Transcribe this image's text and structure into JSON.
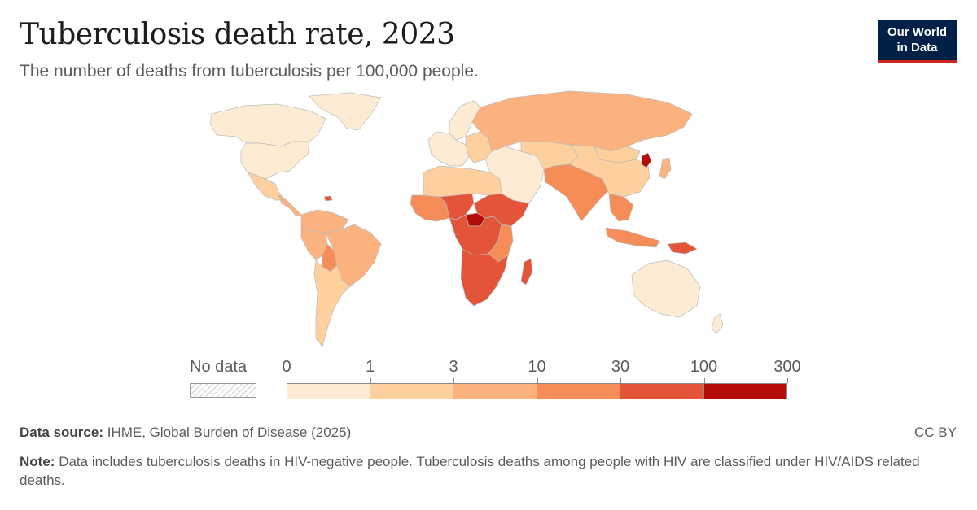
{
  "header": {
    "title": "Tuberculosis death rate, 2023",
    "subtitle": "The number of deaths from tuberculosis per 100,000 people."
  },
  "logo": {
    "line1": "Our World",
    "line2": "in Data"
  },
  "legend": {
    "no_data_label": "No data",
    "ticks": [
      "0",
      "1",
      "3",
      "10",
      "30",
      "100",
      "300"
    ],
    "bins": [
      {
        "from": 0,
        "to": 1,
        "color": "#fdebd4"
      },
      {
        "from": 1,
        "to": 3,
        "color": "#fdd09e"
      },
      {
        "from": 3,
        "to": 10,
        "color": "#fbb27f"
      },
      {
        "from": 10,
        "to": 30,
        "color": "#f68c58"
      },
      {
        "from": 30,
        "to": 100,
        "color": "#e35438"
      },
      {
        "from": 100,
        "to": 300,
        "color": "#b40d0c"
      }
    ]
  },
  "footer": {
    "source_label": "Data source:",
    "source_text": "IHME, Global Burden of Disease (2025)",
    "note_label": "Note:",
    "note_text": "Data includes tuberculosis deaths in HIV-negative people. Tuberculosis deaths among people with HIV are classified under HIV/AIDS related deaths.",
    "license": "CC BY"
  },
  "colors": {
    "border": "#bbbbbb",
    "nodata": "#eeeeee"
  },
  "map_regions": [
    {
      "name": "greenland",
      "bin": 0
    },
    {
      "name": "canada",
      "bin": 0
    },
    {
      "name": "usa",
      "bin": 0
    },
    {
      "name": "mexico",
      "bin": 1
    },
    {
      "name": "central-america",
      "bin": 2
    },
    {
      "name": "haiti",
      "bin": 4
    },
    {
      "name": "south-america-north",
      "bin": 2
    },
    {
      "name": "brazil",
      "bin": 2
    },
    {
      "name": "peru",
      "bin": 2
    },
    {
      "name": "bolivia",
      "bin": 3
    },
    {
      "name": "southern-cone",
      "bin": 1
    },
    {
      "name": "western-europe",
      "bin": 0
    },
    {
      "name": "eastern-europe",
      "bin": 1
    },
    {
      "name": "scandinavia",
      "bin": 0
    },
    {
      "name": "russia",
      "bin": 2
    },
    {
      "name": "north-africa",
      "bin": 1
    },
    {
      "name": "west-africa",
      "bin": 3
    },
    {
      "name": "sahel-africa",
      "bin": 4
    },
    {
      "name": "central-african-republic",
      "bin": 5
    },
    {
      "name": "horn-of-africa",
      "bin": 4
    },
    {
      "name": "central-africa",
      "bin": 4
    },
    {
      "name": "east-africa",
      "bin": 3
    },
    {
      "name": "southern-africa",
      "bin": 4
    },
    {
      "name": "madagascar",
      "bin": 4
    },
    {
      "name": "middle-east",
      "bin": 0
    },
    {
      "name": "central-asia",
      "bin": 1
    },
    {
      "name": "south-asia",
      "bin": 3
    },
    {
      "name": "china",
      "bin": 1
    },
    {
      "name": "mongolia",
      "bin": 1
    },
    {
      "name": "korean-peninsula-north",
      "bin": 5
    },
    {
      "name": "japan",
      "bin": 2
    },
    {
      "name": "southeast-asia",
      "bin": 3
    },
    {
      "name": "indonesia",
      "bin": 3
    },
    {
      "name": "papua",
      "bin": 4
    },
    {
      "name": "australia",
      "bin": 0
    },
    {
      "name": "new-zealand",
      "bin": 0
    }
  ]
}
